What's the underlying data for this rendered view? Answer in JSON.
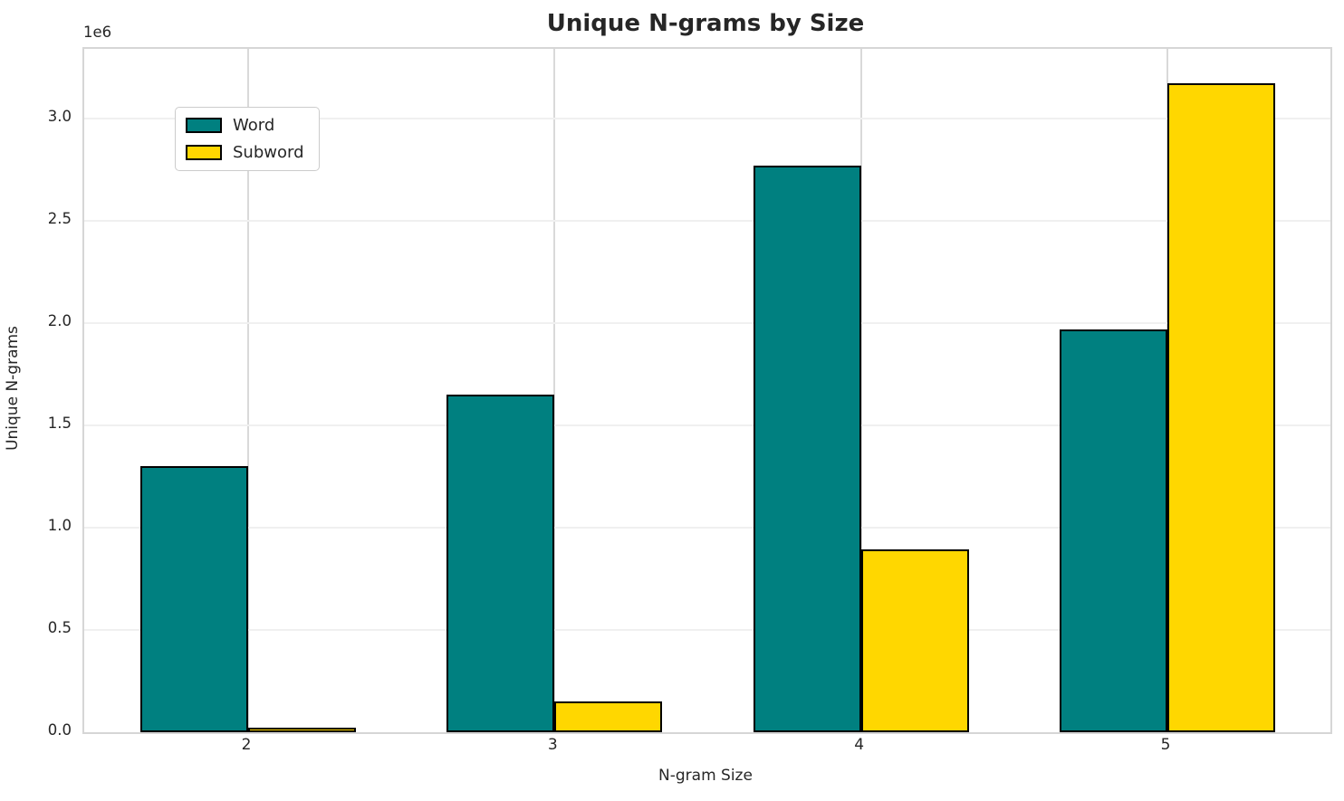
{
  "figure": {
    "title": "Unique N-grams by Size",
    "xlabel": "N-gram Size",
    "ylabel": "Unique N-grams",
    "scale_offset_label": "1e6"
  },
  "chart_data": {
    "type": "bar",
    "title": "Unique N-grams by Size",
    "xlabel": "N-gram Size",
    "ylabel": "Unique N-grams",
    "y_scale_label": "1e6",
    "categories": [
      "2",
      "3",
      "4",
      "5"
    ],
    "series": [
      {
        "name": "Word",
        "color": "#008080",
        "values": [
          1300000,
          1650000,
          2770000,
          1970000
        ]
      },
      {
        "name": "Subword",
        "color": "#FFD700",
        "values": [
          20000,
          150000,
          895000,
          3170000
        ]
      }
    ],
    "y_ticks": {
      "values": [
        0,
        500000,
        1000000,
        1500000,
        2000000,
        2500000,
        3000000
      ],
      "labels": [
        "0.0",
        "0.5",
        "1.0",
        "1.5",
        "2.0",
        "2.5",
        "3.0"
      ]
    },
    "ylim": [
      0,
      3340000
    ],
    "grid": true,
    "legend_position": "upper left",
    "bar_edge_color": "#000000",
    "bar_width_fraction": 0.35
  }
}
